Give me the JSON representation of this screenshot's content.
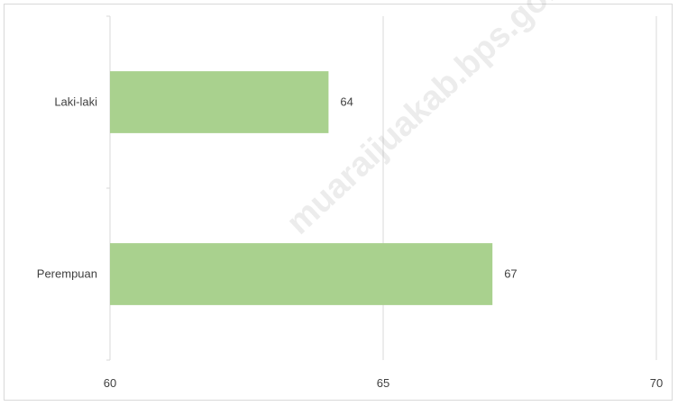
{
  "watermark": {
    "text": "muaraijuakab.bps.go.id"
  },
  "chart_data": {
    "type": "bar",
    "orientation": "horizontal",
    "categories": [
      "Laki-laki",
      "Perempuan"
    ],
    "values": [
      64,
      67
    ],
    "data_labels": [
      "64",
      "67"
    ],
    "xlim": [
      60,
      70
    ],
    "x_ticks": [
      60,
      65,
      70
    ],
    "x_tick_labels": [
      "60",
      "65",
      "70"
    ],
    "grid": "vertical",
    "legend": "none",
    "title": "",
    "xlabel": "",
    "ylabel": "",
    "colors": {
      "bar": "#a9d18e",
      "grid": "#d9d9d9",
      "text": "#404040",
      "axis": "#d9d9d9"
    }
  }
}
